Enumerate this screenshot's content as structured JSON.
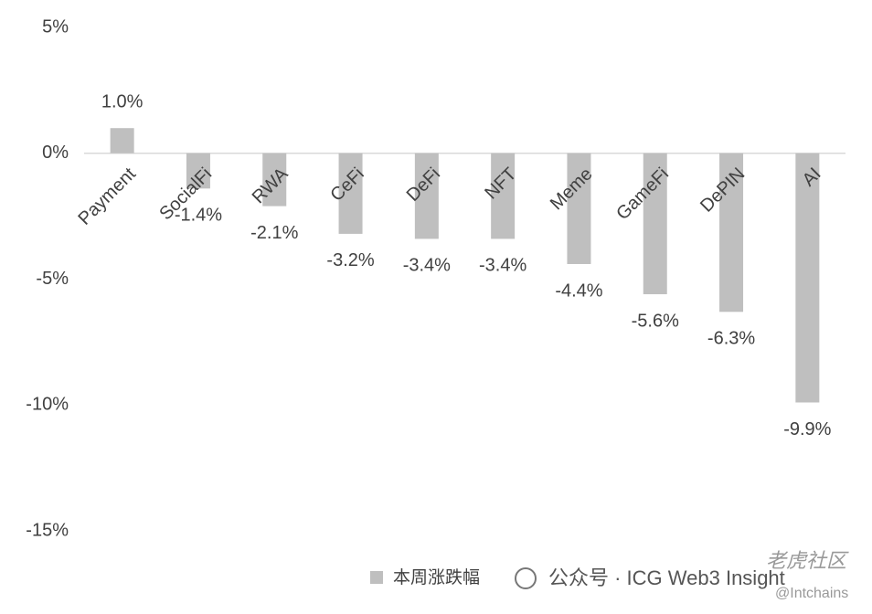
{
  "chart_data": {
    "type": "bar",
    "categories": [
      "Payment",
      "SocialFi",
      "RWA",
      "CeFi",
      "DeFi",
      "NFT",
      "Meme",
      "GameFi",
      "DePIN",
      "AI"
    ],
    "series": [
      {
        "name": "本周涨跌幅",
        "color": "#bfbfbf",
        "values": [
          1.0,
          -1.4,
          -2.1,
          -3.2,
          -3.4,
          -3.4,
          -4.4,
          -5.6,
          -6.3,
          -9.9
        ],
        "value_labels": [
          "1.0%",
          "-1.4%",
          "-2.1%",
          "-3.2%",
          "-3.4%",
          "-3.4%",
          "-4.4%",
          "-5.6%",
          "-6.3%",
          "-9.9%"
        ]
      }
    ],
    "ylim": [
      -15,
      5
    ],
    "yticks": [
      {
        "value": -15,
        "label": "-15%"
      },
      {
        "value": -10,
        "label": "-10%"
      },
      {
        "value": -5,
        "label": "-5%"
      },
      {
        "value": 0,
        "label": "0%"
      },
      {
        "value": 5,
        "label": "5%"
      }
    ],
    "legend": "bottom",
    "grid": false
  },
  "watermarks": [
    "公众号 · ICG Web3 Insight",
    "老虎社区",
    "@Intchains"
  ]
}
